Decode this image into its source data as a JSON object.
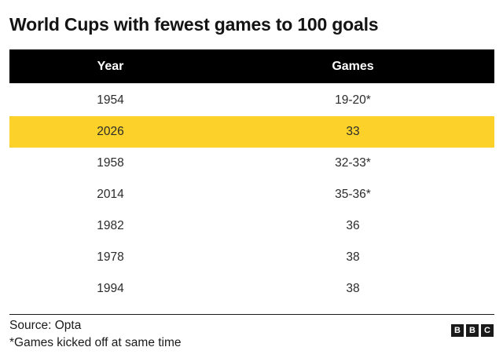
{
  "title": "World Cups with fewest games to 100 goals",
  "highlight_color": "#fcd12a",
  "header_color": "#000000",
  "chart_data": {
    "type": "table",
    "columns": [
      "Year",
      "Games"
    ],
    "rows": [
      {
        "year": "1954",
        "games": "19-20*",
        "highlight": false
      },
      {
        "year": "2026",
        "games": "33",
        "highlight": true
      },
      {
        "year": "1958",
        "games": "32-33*",
        "highlight": false
      },
      {
        "year": "2014",
        "games": "35-36*",
        "highlight": false
      },
      {
        "year": "1982",
        "games": "36",
        "highlight": false
      },
      {
        "year": "1978",
        "games": "38",
        "highlight": false
      },
      {
        "year": "1994",
        "games": "38",
        "highlight": false
      }
    ]
  },
  "footer": {
    "source": "Source: Opta",
    "note": "*Games kicked off at same time"
  },
  "logo": {
    "letters": [
      "B",
      "B",
      "C"
    ]
  }
}
